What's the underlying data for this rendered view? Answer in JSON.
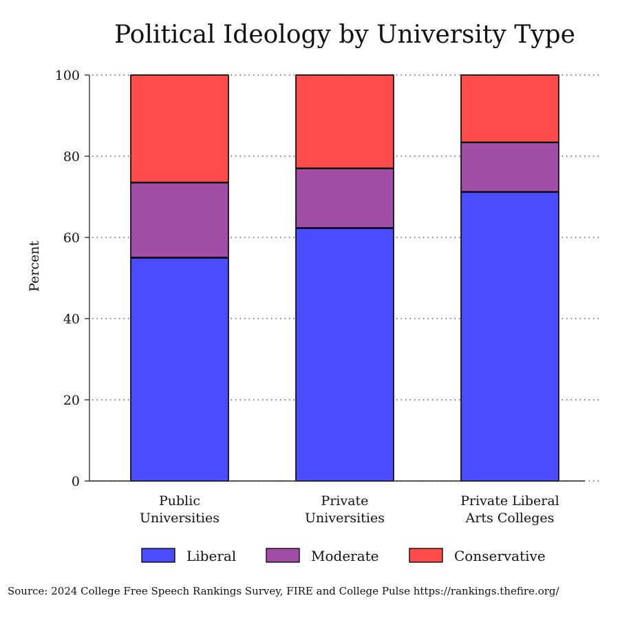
{
  "chart_data": {
    "type": "bar",
    "stacked": true,
    "title": "Political Ideology by University Type",
    "ylabel": "Percent",
    "xlabel": "",
    "ylim": [
      0,
      100
    ],
    "yticks": [
      "0",
      "20",
      "40",
      "60",
      "80",
      "100"
    ],
    "grid": true,
    "legend_position": "bottom",
    "categories": [
      [
        "Public",
        "Universities"
      ],
      [
        "Private",
        "Universities"
      ],
      [
        "Private Liberal",
        "Arts Colleges"
      ]
    ],
    "series": [
      {
        "name": "Liberal",
        "color": "#4b4bff",
        "values": [
          55,
          62.3,
          71.2
        ]
      },
      {
        "name": "Moderate",
        "color": "#a24ea6",
        "values": [
          18.5,
          14.7,
          12.2
        ]
      },
      {
        "name": "Conservative",
        "color": "#ff4b4b",
        "values": [
          26.5,
          23,
          16.6
        ]
      }
    ]
  },
  "source": "Source: 2024 College Free Speech Rankings Survey, FIRE and College Pulse https://rankings.thefire.org/"
}
